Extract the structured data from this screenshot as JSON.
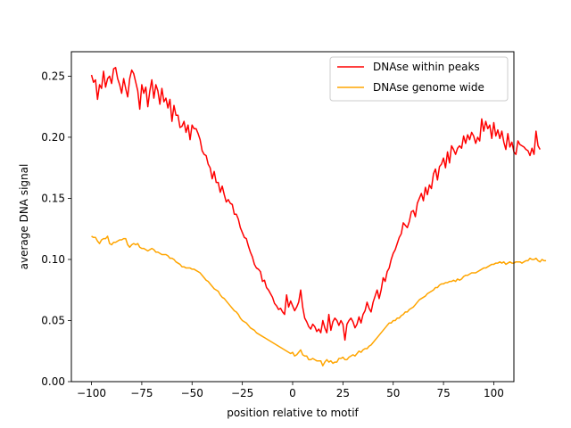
{
  "chart_data": {
    "type": "line",
    "title": "",
    "xlabel": "position relative to motif",
    "ylabel": "average DNA signal",
    "xlim": [
      -110,
      110
    ],
    "ylim": [
      0.0,
      0.27
    ],
    "xticks": [
      -100,
      -75,
      -50,
      -25,
      0,
      25,
      50,
      75,
      100
    ],
    "xtick_labels": [
      "−100",
      "−75",
      "−50",
      "−25",
      "0",
      "25",
      "50",
      "75",
      "100"
    ],
    "yticks": [
      0.0,
      0.05,
      0.1,
      0.15,
      0.2,
      0.25
    ],
    "ytick_labels": [
      "0.00",
      "0.05",
      "0.10",
      "0.15",
      "0.20",
      "0.25"
    ],
    "grid": false,
    "legend_position": "top-right",
    "series": [
      {
        "name": "DNAse within peaks",
        "color": "#ff0000",
        "x_start": -100,
        "x_step": 1,
        "values": [
          0.251,
          0.245,
          0.247,
          0.231,
          0.243,
          0.24,
          0.254,
          0.241,
          0.248,
          0.25,
          0.244,
          0.256,
          0.257,
          0.248,
          0.243,
          0.236,
          0.248,
          0.24,
          0.233,
          0.248,
          0.255,
          0.252,
          0.245,
          0.238,
          0.223,
          0.243,
          0.236,
          0.241,
          0.225,
          0.238,
          0.247,
          0.232,
          0.243,
          0.238,
          0.227,
          0.24,
          0.229,
          0.232,
          0.224,
          0.231,
          0.213,
          0.226,
          0.218,
          0.218,
          0.208,
          0.209,
          0.213,
          0.204,
          0.21,
          0.198,
          0.21,
          0.207,
          0.207,
          0.203,
          0.198,
          0.189,
          0.186,
          0.185,
          0.178,
          0.175,
          0.166,
          0.172,
          0.163,
          0.163,
          0.155,
          0.16,
          0.153,
          0.147,
          0.149,
          0.146,
          0.145,
          0.137,
          0.137,
          0.133,
          0.126,
          0.122,
          0.118,
          0.117,
          0.111,
          0.106,
          0.102,
          0.096,
          0.093,
          0.092,
          0.09,
          0.082,
          0.083,
          0.077,
          0.075,
          0.072,
          0.069,
          0.064,
          0.062,
          0.059,
          0.06,
          0.057,
          0.055,
          0.071,
          0.061,
          0.066,
          0.062,
          0.058,
          0.061,
          0.065,
          0.075,
          0.061,
          0.052,
          0.049,
          0.045,
          0.043,
          0.047,
          0.045,
          0.041,
          0.043,
          0.04,
          0.05,
          0.044,
          0.04,
          0.055,
          0.042,
          0.049,
          0.052,
          0.05,
          0.046,
          0.05,
          0.047,
          0.034,
          0.047,
          0.05,
          0.052,
          0.049,
          0.044,
          0.047,
          0.053,
          0.048,
          0.055,
          0.058,
          0.065,
          0.06,
          0.057,
          0.065,
          0.07,
          0.075,
          0.068,
          0.075,
          0.085,
          0.082,
          0.09,
          0.093,
          0.1,
          0.105,
          0.108,
          0.113,
          0.118,
          0.121,
          0.13,
          0.128,
          0.126,
          0.131,
          0.139,
          0.14,
          0.135,
          0.146,
          0.15,
          0.154,
          0.148,
          0.159,
          0.153,
          0.161,
          0.158,
          0.17,
          0.174,
          0.165,
          0.176,
          0.178,
          0.183,
          0.175,
          0.188,
          0.179,
          0.193,
          0.19,
          0.186,
          0.191,
          0.193,
          0.191,
          0.201,
          0.195,
          0.202,
          0.198,
          0.204,
          0.201,
          0.195,
          0.2,
          0.197,
          0.215,
          0.205,
          0.213,
          0.207,
          0.21,
          0.199,
          0.212,
          0.201,
          0.206,
          0.199,
          0.205,
          0.196,
          0.19,
          0.203,
          0.192,
          0.196,
          0.188,
          0.186,
          0.197,
          0.194,
          0.193,
          0.192,
          0.19,
          0.189,
          0.185,
          0.191,
          0.186,
          0.205,
          0.193,
          0.19
        ]
      },
      {
        "name": "DNAse genome wide",
        "color": "#ffa500",
        "x_start": -100,
        "x_step": 1,
        "values": [
          0.119,
          0.118,
          0.118,
          0.115,
          0.113,
          0.116,
          0.117,
          0.117,
          0.119,
          0.113,
          0.112,
          0.114,
          0.114,
          0.115,
          0.116,
          0.116,
          0.117,
          0.117,
          0.112,
          0.11,
          0.112,
          0.113,
          0.112,
          0.113,
          0.11,
          0.109,
          0.109,
          0.108,
          0.107,
          0.108,
          0.109,
          0.108,
          0.106,
          0.106,
          0.105,
          0.104,
          0.104,
          0.104,
          0.103,
          0.101,
          0.101,
          0.1,
          0.098,
          0.097,
          0.096,
          0.094,
          0.094,
          0.093,
          0.093,
          0.093,
          0.092,
          0.092,
          0.091,
          0.09,
          0.089,
          0.087,
          0.085,
          0.083,
          0.082,
          0.08,
          0.078,
          0.076,
          0.075,
          0.074,
          0.071,
          0.069,
          0.068,
          0.066,
          0.064,
          0.062,
          0.06,
          0.058,
          0.057,
          0.055,
          0.052,
          0.05,
          0.049,
          0.048,
          0.046,
          0.044,
          0.043,
          0.042,
          0.04,
          0.039,
          0.038,
          0.037,
          0.036,
          0.035,
          0.034,
          0.033,
          0.032,
          0.031,
          0.03,
          0.029,
          0.028,
          0.027,
          0.026,
          0.025,
          0.024,
          0.023,
          0.024,
          0.021,
          0.022,
          0.024,
          0.026,
          0.022,
          0.021,
          0.021,
          0.018,
          0.018,
          0.019,
          0.018,
          0.017,
          0.017,
          0.017,
          0.013,
          0.016,
          0.018,
          0.016,
          0.017,
          0.015,
          0.016,
          0.016,
          0.019,
          0.019,
          0.02,
          0.018,
          0.018,
          0.02,
          0.021,
          0.022,
          0.021,
          0.023,
          0.025,
          0.024,
          0.026,
          0.027,
          0.027,
          0.029,
          0.03,
          0.032,
          0.034,
          0.036,
          0.038,
          0.04,
          0.042,
          0.044,
          0.046,
          0.048,
          0.048,
          0.05,
          0.05,
          0.052,
          0.052,
          0.054,
          0.055,
          0.057,
          0.057,
          0.059,
          0.06,
          0.061,
          0.063,
          0.065,
          0.067,
          0.068,
          0.069,
          0.07,
          0.072,
          0.073,
          0.074,
          0.075,
          0.077,
          0.077,
          0.079,
          0.08,
          0.08,
          0.081,
          0.081,
          0.082,
          0.082,
          0.083,
          0.082,
          0.084,
          0.083,
          0.084,
          0.086,
          0.087,
          0.087,
          0.088,
          0.089,
          0.089,
          0.089,
          0.09,
          0.091,
          0.092,
          0.093,
          0.093,
          0.094,
          0.095,
          0.096,
          0.096,
          0.097,
          0.097,
          0.098,
          0.097,
          0.098,
          0.096,
          0.097,
          0.098,
          0.097,
          0.097,
          0.098,
          0.098,
          0.098,
          0.097,
          0.098,
          0.099,
          0.099,
          0.101,
          0.1,
          0.1,
          0.101,
          0.099,
          0.098,
          0.1,
          0.099,
          0.099
        ]
      }
    ]
  }
}
